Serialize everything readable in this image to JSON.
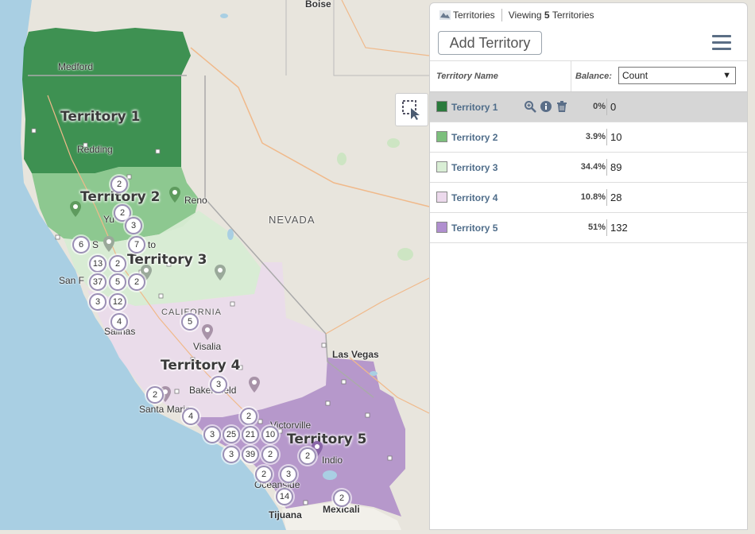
{
  "map": {
    "territories": [
      {
        "label": "Territory 1",
        "color": "#2f8a45"
      },
      {
        "label": "Territory 2",
        "color": "#83c487"
      },
      {
        "label": "Territory 3",
        "color": "#d7ecd3"
      },
      {
        "label": "Territory 4",
        "color": "#eadbea"
      },
      {
        "label": "Territory 5",
        "color": "#b08fc9"
      }
    ],
    "cities": {
      "boise": "Boise",
      "medford": "Medford",
      "redding": "Redding",
      "reno": "Reno",
      "nevada": "NEVADA",
      "yuba": "Yu",
      "san_fran": "San F",
      "california": "CALIFORNIA",
      "salinas": "Salinas",
      "visalia": "Visalia",
      "las_vegas": "Las Vegas",
      "bakersfield": "Bakersfield",
      "santa_maria": "Santa Maria",
      "oceanside": "Oceanside",
      "tijuana": "Tijuana",
      "mexicali": "Mexicali",
      "victorville": "Victorville",
      "indio": "Indio",
      "stockton": "to",
      "sacramento": "S"
    },
    "clusters": [
      "2",
      "2",
      "3",
      "6",
      "7",
      "13",
      "2",
      "37",
      "5",
      "2",
      "3",
      "12",
      "4",
      "5",
      "3",
      "2",
      "4",
      "2",
      "3",
      "25",
      "21",
      "10",
      "3",
      "39",
      "2",
      "2",
      "2",
      "3",
      "14",
      "2"
    ]
  },
  "panel": {
    "title": "Territories",
    "viewing_prefix": "Viewing",
    "viewing_count": "5",
    "viewing_suffix": "Territories",
    "add_button": "Add Territory",
    "col_name": "Territory Name",
    "col_balance": "Balance:",
    "balance_select": "Count",
    "rows": [
      {
        "name": "Territory 1",
        "pct": "0%",
        "value": "0",
        "color": "#2a7a3c"
      },
      {
        "name": "Territory 2",
        "pct": "3.9%",
        "value": "10",
        "color": "#7dbf7d"
      },
      {
        "name": "Territory 3",
        "pct": "34.4%",
        "value": "89",
        "color": "#d9eed5"
      },
      {
        "name": "Territory 4",
        "pct": "10.8%",
        "value": "28",
        "color": "#ecd9ec"
      },
      {
        "name": "Territory 5",
        "pct": "51%",
        "value": "132",
        "color": "#b08fcf"
      }
    ]
  }
}
